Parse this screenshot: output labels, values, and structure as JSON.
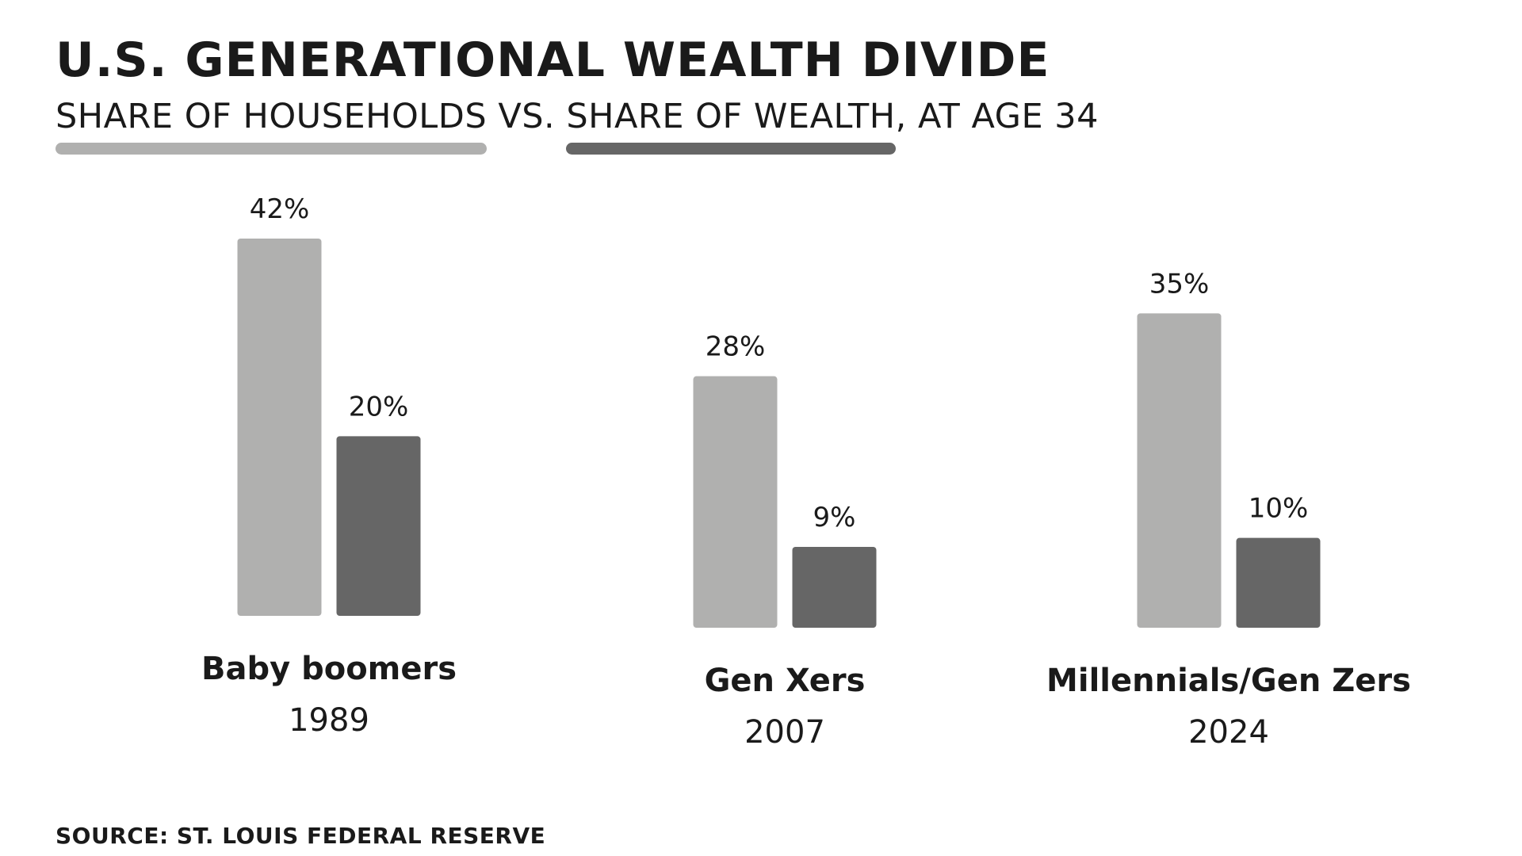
{
  "header": {
    "title": "U.S. GENERATIONAL WEALTH DIVIDE",
    "subtitle_part1": "SHARE OF HOUSEHOLDS",
    "subtitle_part2": " VS. ",
    "subtitle_part3": "SHARE OF WEALTH",
    "subtitle_part4": ", AT AGE 34"
  },
  "colors": {
    "households": "#b0b0af",
    "wealth": "#666666"
  },
  "footer": {
    "source": "SOURCE: ST. LOUIS FEDERAL RESERVE"
  },
  "chart_data": {
    "type": "bar",
    "title": "U.S. GENERATIONAL WEALTH DIVIDE",
    "subtitle": "SHARE OF HOUSEHOLDS VS. SHARE OF WEALTH, AT AGE 34",
    "categories": [
      "Baby boomers",
      "Gen Xers",
      "Millennials/Gen Zers"
    ],
    "years": [
      "1989",
      "2007",
      "2024"
    ],
    "series": [
      {
        "name": "SHARE OF HOUSEHOLDS",
        "values": [
          42,
          28,
          35
        ],
        "labels": [
          "42%",
          "28%",
          "35%"
        ],
        "color": "#b0b0af"
      },
      {
        "name": "SHARE OF WEALTH",
        "values": [
          20,
          9,
          10
        ],
        "labels": [
          "20%",
          "9%",
          "10%"
        ],
        "color": "#666666"
      }
    ],
    "xlabel": "",
    "ylabel": "",
    "ylim": [
      0,
      42
    ],
    "grid": false,
    "legend": "top-left (underlines beneath subtitle)"
  }
}
